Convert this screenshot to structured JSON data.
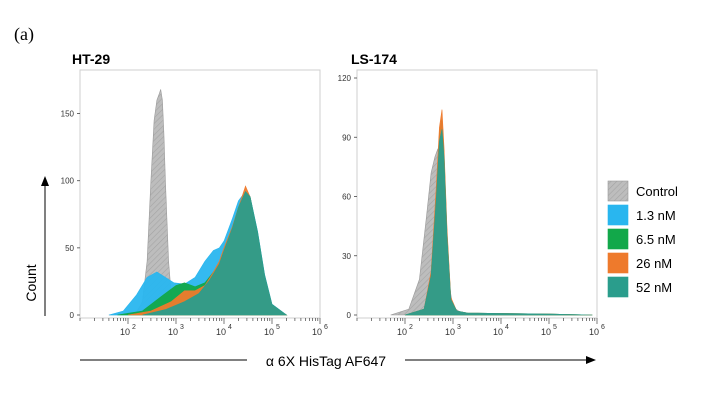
{
  "figure": {
    "panel_label": "(a)",
    "y_label": "Count",
    "x_label": "α 6X HisTag AF647"
  },
  "colors": {
    "control": "#bdbdbd",
    "c13": "#29b6ef",
    "c65": "#12a84a",
    "c26": "#ee7a2c",
    "c52": "#2a9d8c"
  },
  "chart_data": [
    {
      "type": "area",
      "title": "HT-29",
      "xscale": "log",
      "xlim": [
        10,
        1000000
      ],
      "ylim": [
        0,
        175
      ],
      "y_ticks": [
        "0",
        "50",
        "100",
        "150"
      ],
      "y_tick_values": [
        0,
        50,
        100,
        150
      ],
      "x_ticks": [
        {
          "base": "10",
          "exp": "2",
          "value": 100
        },
        {
          "base": "10",
          "exp": "3",
          "value": 1000
        },
        {
          "base": "10",
          "exp": "4",
          "value": 10000
        },
        {
          "base": "10",
          "exp": "5",
          "value": 100000
        },
        {
          "base": "10",
          "exp": "6",
          "value": 1000000
        }
      ],
      "series": [
        {
          "name": "Control",
          "color_key": "control",
          "hatched": true,
          "x": [
            40,
            150,
            200,
            250,
            300,
            350,
            400,
            450,
            480,
            520,
            560,
            600,
            700,
            800,
            1000,
            1300,
            2000,
            5000,
            20000,
            100000
          ],
          "y": [
            0,
            2,
            10,
            40,
            100,
            145,
            160,
            165,
            168,
            160,
            135,
            100,
            40,
            15,
            5,
            2,
            1,
            0.5,
            0.3,
            0
          ]
        },
        {
          "name": "1.3 nM",
          "color_key": "c13",
          "x": [
            40,
            80,
            150,
            250,
            400,
            600,
            900,
            1500,
            2500,
            4000,
            6000,
            8000,
            10000,
            15000,
            20000,
            28000,
            35000,
            50000,
            70000,
            100000,
            200000
          ],
          "y": [
            0,
            3,
            15,
            28,
            32,
            28,
            24,
            23,
            28,
            40,
            48,
            50,
            55,
            72,
            85,
            92,
            88,
            62,
            30,
            8,
            0
          ]
        },
        {
          "name": "6.5 nM",
          "color_key": "c65",
          "x": [
            60,
            200,
            500,
            1000,
            1500,
            2500,
            4000,
            6000,
            8000,
            10000,
            15000,
            20000,
            28000,
            35000,
            50000,
            70000,
            100000,
            200000
          ],
          "y": [
            0,
            3,
            14,
            22,
            24,
            21,
            24,
            32,
            38,
            45,
            65,
            80,
            92,
            88,
            60,
            28,
            7,
            0
          ]
        },
        {
          "name": "26 nM",
          "color_key": "c26",
          "x": [
            100,
            300,
            800,
            1500,
            2500,
            4000,
            6000,
            8000,
            10000,
            15000,
            20000,
            28000,
            35000,
            50000,
            70000,
            100000,
            200000
          ],
          "y": [
            0,
            3,
            10,
            18,
            18,
            22,
            32,
            40,
            50,
            66,
            80,
            96,
            88,
            58,
            28,
            7,
            0
          ]
        },
        {
          "name": "52 nM",
          "color_key": "c52",
          "x": [
            200,
            600,
            1500,
            3000,
            5000,
            8000,
            10000,
            15000,
            20000,
            28000,
            35000,
            50000,
            70000,
            100000,
            200000
          ],
          "y": [
            0,
            4,
            10,
            16,
            26,
            38,
            48,
            65,
            80,
            92,
            88,
            62,
            30,
            8,
            0
          ]
        }
      ]
    },
    {
      "type": "area",
      "title": "LS-174",
      "xscale": "log",
      "xlim": [
        10,
        1000000
      ],
      "ylim": [
        0,
        120
      ],
      "y_ticks": [
        "0",
        "30",
        "60",
        "90",
        "120"
      ],
      "y_tick_values": [
        0,
        30,
        60,
        90,
        120
      ],
      "x_ticks": [
        {
          "base": "10",
          "exp": "2",
          "value": 100
        },
        {
          "base": "10",
          "exp": "3",
          "value": 1000
        },
        {
          "base": "10",
          "exp": "4",
          "value": 10000
        },
        {
          "base": "10",
          "exp": "5",
          "value": 100000
        },
        {
          "base": "10",
          "exp": "6",
          "value": 1000000
        }
      ],
      "series": [
        {
          "name": "Control",
          "color_key": "control",
          "hatched": true,
          "x": [
            50,
            120,
            200,
            280,
            350,
            420,
            480,
            550,
            650,
            800,
            1000,
            1500,
            3000,
            100000,
            500000
          ],
          "y": [
            0,
            3,
            18,
            50,
            72,
            80,
            84,
            80,
            55,
            18,
            4,
            1,
            0.5,
            0.3,
            0
          ]
        },
        {
          "name": "1.3 nM",
          "color_key": "c13",
          "x": [
            100,
            250,
            350,
            450,
            520,
            580,
            650,
            750,
            900,
            1200,
            2000,
            100000,
            800000
          ],
          "y": [
            0,
            3,
            20,
            60,
            90,
            97,
            80,
            40,
            8,
            2,
            1,
            0.5,
            0
          ]
        },
        {
          "name": "6.5 nM",
          "color_key": "c65",
          "x": [
            100,
            250,
            350,
            450,
            520,
            580,
            650,
            750,
            900,
            1200,
            2000,
            100000,
            800000
          ],
          "y": [
            0,
            3,
            20,
            62,
            92,
            99,
            82,
            42,
            8,
            2,
            1,
            0.5,
            0
          ]
        },
        {
          "name": "26 nM",
          "color_key": "c26",
          "x": [
            100,
            250,
            350,
            450,
            520,
            590,
            650,
            750,
            900,
            1200,
            2000,
            100000,
            800000
          ],
          "y": [
            0,
            3,
            22,
            66,
            95,
            104,
            85,
            44,
            9,
            2,
            1,
            0.5,
            0
          ]
        },
        {
          "name": "52 nM",
          "color_key": "c52",
          "x": [
            100,
            250,
            350,
            450,
            520,
            590,
            650,
            750,
            900,
            1200,
            2000,
            100000,
            800000
          ],
          "y": [
            0,
            3,
            20,
            60,
            88,
            94,
            80,
            40,
            8,
            2,
            1,
            0.5,
            0
          ]
        }
      ]
    }
  ],
  "legend": {
    "items": [
      {
        "label": "Control",
        "color_key": "control",
        "hatched": true
      },
      {
        "label": "1.3 nM",
        "color_key": "c13"
      },
      {
        "label": "6.5 nM",
        "color_key": "c65"
      },
      {
        "label": "26 nM",
        "color_key": "c26"
      },
      {
        "label": "52 nM",
        "color_key": "c52"
      }
    ]
  }
}
